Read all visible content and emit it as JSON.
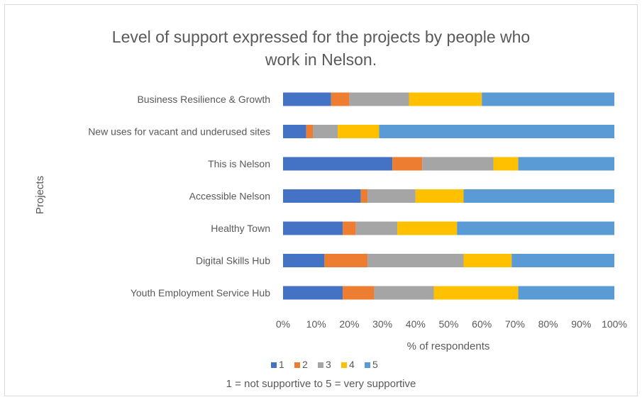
{
  "chart_data": {
    "type": "bar",
    "orientation": "horizontal",
    "stacked": true,
    "percent": true,
    "title": "Level of support expressed for the projects by people who work in Nelson.",
    "title_lines": [
      "Level of support expressed for the projects by people who",
      "work in Nelson."
    ],
    "xlabel": "% of respondents",
    "ylabel": "Projects",
    "xlim": [
      0,
      100
    ],
    "xticks": [
      "0%",
      "10%",
      "20%",
      "30%",
      "40%",
      "50%",
      "60%",
      "70%",
      "80%",
      "90%",
      "100%"
    ],
    "categories": [
      "Business Resilience & Growth",
      "New uses for vacant and underused sites",
      "This is Nelson",
      "Accessible Nelson",
      "Healthy Town",
      "Digital Skills Hub",
      "Youth Employment Service Hub"
    ],
    "series": [
      {
        "name": "1",
        "color": "#4472c4",
        "values": [
          14.5,
          7,
          33,
          23.5,
          18,
          12.5,
          18
        ]
      },
      {
        "name": "2",
        "color": "#ed7d31",
        "values": [
          5.5,
          2,
          9,
          2,
          4,
          13,
          9.5
        ]
      },
      {
        "name": "3",
        "color": "#a5a5a5",
        "values": [
          18,
          7.5,
          21.5,
          14.5,
          12.5,
          29,
          18
        ]
      },
      {
        "name": "4",
        "color": "#ffc000",
        "values": [
          22,
          12.5,
          7.5,
          14.5,
          18,
          14.5,
          25.5
        ]
      },
      {
        "name": "5",
        "color": "#5b9bd5",
        "values": [
          40,
          71,
          29,
          45.5,
          47.5,
          31,
          29
        ]
      }
    ],
    "legend": {
      "position": "bottom"
    },
    "note": "1 = not supportive to 5 = very supportive",
    "grid": false
  }
}
